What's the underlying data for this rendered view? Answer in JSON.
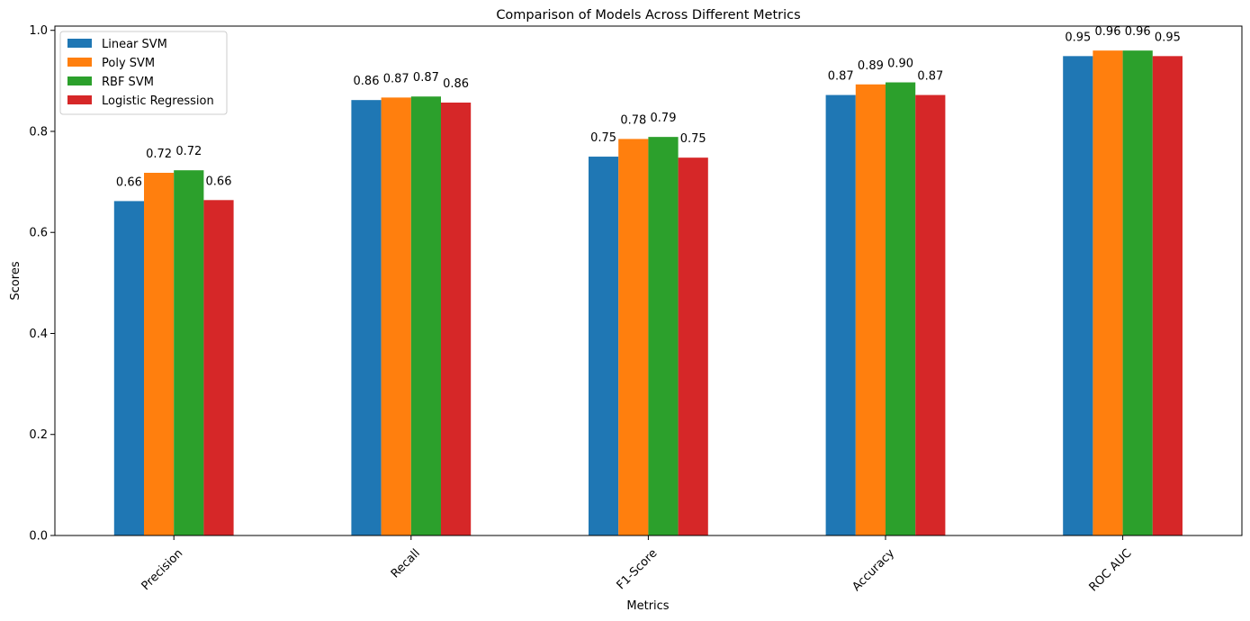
{
  "chart_data": {
    "type": "bar",
    "title": "Comparison of Models Across Different Metrics",
    "xlabel": "Metrics",
    "ylabel": "Scores",
    "categories": [
      "Precision",
      "Recall",
      "F1-Score",
      "Accuracy",
      "ROC AUC"
    ],
    "ylim": [
      0,
      1.0
    ],
    "yticks": [
      "0.0",
      "0.2",
      "0.4",
      "0.6",
      "0.8",
      "1.0"
    ],
    "grid": false,
    "legend_position": "upper-left",
    "series": [
      {
        "name": "Linear SVM",
        "color": "#1f77b4",
        "values": [
          0.662,
          0.862,
          0.75,
          0.872,
          0.949
        ],
        "labels": [
          "0.66",
          "0.86",
          "0.75",
          "0.87",
          "0.95"
        ]
      },
      {
        "name": "Poly SVM",
        "color": "#ff7f0e",
        "values": [
          0.718,
          0.867,
          0.785,
          0.893,
          0.96
        ],
        "labels": [
          "0.72",
          "0.87",
          "0.78",
          "0.89",
          "0.96"
        ]
      },
      {
        "name": "RBF SVM",
        "color": "#2ca02c",
        "values": [
          0.723,
          0.869,
          0.789,
          0.897,
          0.96
        ],
        "labels": [
          "0.72",
          "0.87",
          "0.79",
          "0.90",
          "0.96"
        ]
      },
      {
        "name": "Logistic Regression",
        "color": "#d62728",
        "values": [
          0.664,
          0.857,
          0.748,
          0.872,
          0.949
        ],
        "labels": [
          "0.66",
          "0.86",
          "0.75",
          "0.87",
          "0.95"
        ]
      }
    ]
  }
}
